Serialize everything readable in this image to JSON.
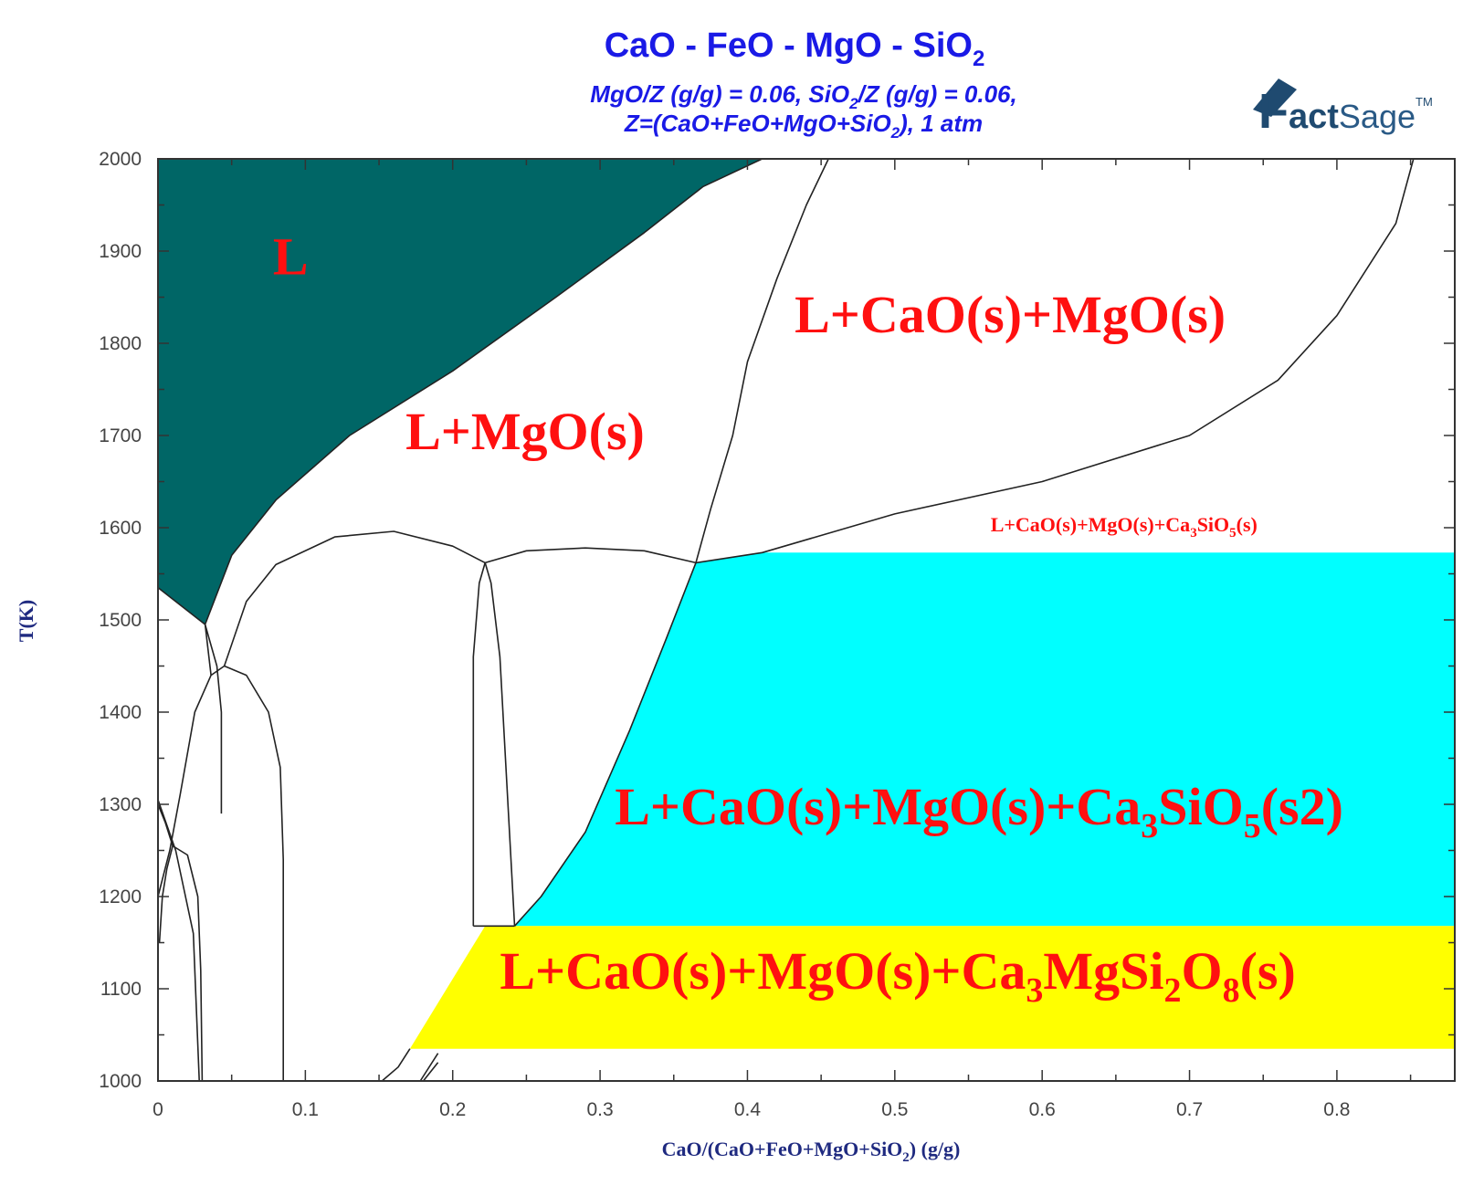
{
  "chart_data": {
    "type": "area",
    "title": "CaO - FeO - MgO - SiO",
    "title_sub": "2",
    "subtitle_line1": {
      "a": "MgO/Z (g/g)  = 0.06,  SiO",
      "sub": "2",
      "b": "/Z (g/g)  = 0.06,"
    },
    "subtitle_line2": {
      "a": "Z=(CaO+FeO+MgO+SiO",
      "sub": "2",
      "b": "), 1 atm"
    },
    "xlabel": {
      "a": "CaO/(CaO+FeO+MgO+SiO",
      "sub": "2",
      "b": ") (g/g)"
    },
    "ylabel": "T(K)",
    "xlim": [
      0,
      0.88
    ],
    "ylim": [
      1000,
      2000
    ],
    "x_ticks": [
      "0",
      "0.1",
      "0.2",
      "0.3",
      "0.4",
      "0.5",
      "0.6",
      "0.7",
      "0.8"
    ],
    "x_tick_values": [
      0,
      0.1,
      0.2,
      0.3,
      0.4,
      0.5,
      0.6,
      0.7,
      0.8
    ],
    "y_ticks": [
      "1000",
      "1100",
      "1200",
      "1300",
      "1400",
      "1500",
      "1600",
      "1700",
      "1800",
      "1900",
      "2000"
    ],
    "y_tick_values": [
      1000,
      1100,
      1200,
      1300,
      1400,
      1500,
      1600,
      1700,
      1800,
      1900,
      2000
    ],
    "logo": {
      "a": "F",
      "b": "act",
      "c": "Sage",
      "tm": "TM"
    },
    "regions": [
      {
        "id": "L",
        "color": "#006666",
        "points": [
          [
            0,
            2000
          ],
          [
            0.41,
            2000
          ],
          [
            0.37,
            1970
          ],
          [
            0.33,
            1920
          ],
          [
            0.27,
            1850
          ],
          [
            0.2,
            1770
          ],
          [
            0.13,
            1700
          ],
          [
            0.08,
            1630
          ],
          [
            0.05,
            1570
          ],
          [
            0.032,
            1495
          ],
          [
            0,
            1535
          ]
        ]
      },
      {
        "id": "L_CaO_MgO_Ca3SiO5_s2",
        "color": "#00ffff",
        "points": [
          [
            0.365,
            1562
          ],
          [
            0.41,
            1573
          ],
          [
            0.88,
            1573
          ],
          [
            0.88,
            1168
          ],
          [
            0.242,
            1168
          ],
          [
            0.26,
            1200
          ],
          [
            0.29,
            1270
          ],
          [
            0.32,
            1380
          ],
          [
            0.345,
            1480
          ]
        ]
      },
      {
        "id": "L_CaO_MgO_Ca3MgSi2O8_s",
        "color": "#ffff00",
        "points": [
          [
            0.222,
            1168
          ],
          [
            0.88,
            1168
          ],
          [
            0.88,
            1035
          ],
          [
            0.171,
            1035
          ]
        ]
      }
    ],
    "boundaries": [
      [
        [
          0.41,
          2000
        ],
        [
          0.37,
          1970
        ],
        [
          0.33,
          1920
        ],
        [
          0.27,
          1850
        ],
        [
          0.2,
          1770
        ],
        [
          0.13,
          1700
        ],
        [
          0.08,
          1630
        ],
        [
          0.05,
          1570
        ],
        [
          0.032,
          1495
        ],
        [
          0,
          1535
        ]
      ],
      [
        [
          0.455,
          2000
        ],
        [
          0.44,
          1950
        ],
        [
          0.42,
          1870
        ],
        [
          0.4,
          1780
        ],
        [
          0.39,
          1700
        ],
        [
          0.375,
          1620
        ],
        [
          0.365,
          1562
        ],
        [
          0.345,
          1480
        ],
        [
          0.32,
          1380
        ],
        [
          0.29,
          1270
        ],
        [
          0.26,
          1200
        ],
        [
          0.242,
          1168
        ]
      ],
      [
        [
          0.852,
          2000
        ],
        [
          0.84,
          1930
        ],
        [
          0.8,
          1830
        ],
        [
          0.76,
          1760
        ],
        [
          0.7,
          1700
        ],
        [
          0.6,
          1650
        ],
        [
          0.5,
          1615
        ],
        [
          0.41,
          1573
        ],
        [
          0.365,
          1562
        ]
      ],
      [
        [
          0.365,
          1562
        ],
        [
          0.33,
          1575
        ],
        [
          0.29,
          1578
        ],
        [
          0.25,
          1575
        ],
        [
          0.222,
          1562
        ]
      ],
      [
        [
          0.222,
          1562
        ],
        [
          0.2,
          1580
        ],
        [
          0.16,
          1596
        ],
        [
          0.12,
          1590
        ],
        [
          0.08,
          1560
        ],
        [
          0.06,
          1520
        ],
        [
          0.045,
          1450
        ]
      ],
      [
        [
          0.222,
          1562
        ],
        [
          0.218,
          1540
        ],
        [
          0.214,
          1460
        ],
        [
          0.214,
          1168
        ]
      ],
      [
        [
          0.222,
          1562
        ],
        [
          0.226,
          1540
        ],
        [
          0.232,
          1460
        ],
        [
          0.242,
          1168
        ]
      ],
      [
        [
          0.214,
          1168
        ],
        [
          0.242,
          1168
        ]
      ],
      [
        [
          0.032,
          1495
        ],
        [
          0.04,
          1450
        ],
        [
          0.043,
          1400
        ],
        [
          0.043,
          1290
        ]
      ],
      [
        [
          0.032,
          1495
        ],
        [
          0.036,
          1440
        ]
      ],
      [
        [
          0.045,
          1450
        ],
        [
          0.036,
          1440
        ],
        [
          0.025,
          1400
        ],
        [
          0.015,
          1310
        ],
        [
          0.008,
          1250
        ],
        [
          0,
          1200
        ]
      ],
      [
        [
          0.045,
          1450
        ],
        [
          0.06,
          1440
        ],
        [
          0.075,
          1400
        ],
        [
          0.083,
          1340
        ],
        [
          0.085,
          1240
        ],
        [
          0.085,
          1000
        ]
      ],
      [
        [
          0,
          1300
        ],
        [
          0.005,
          1280
        ],
        [
          0.01,
          1255
        ],
        [
          0.02,
          1245
        ],
        [
          0.027,
          1200
        ],
        [
          0.029,
          1120
        ],
        [
          0.03,
          1000
        ]
      ],
      [
        [
          0.01,
          1255
        ],
        [
          0.006,
          1230
        ],
        [
          0.003,
          1200
        ],
        [
          0.001,
          1150
        ]
      ],
      [
        [
          0,
          1305
        ],
        [
          0.012,
          1250
        ],
        [
          0.024,
          1160
        ],
        [
          0.028,
          1000
        ]
      ],
      [
        [
          0.152,
          1000
        ],
        [
          0.163,
          1015
        ],
        [
          0.171,
          1035
        ]
      ],
      [
        [
          0.178,
          1000
        ],
        [
          0.19,
          1030
        ]
      ],
      [
        [
          0.18,
          1000
        ],
        [
          0.19,
          1020
        ]
      ]
    ],
    "labels": [
      {
        "id": "label-L",
        "text": "L",
        "x": 0.078,
        "y": 1875,
        "size": "big"
      },
      {
        "id": "label-L-MgO",
        "text": "L+MgO(s)",
        "x": 0.168,
        "y": 1685,
        "size": "big"
      },
      {
        "id": "label-L-CaO-MgO",
        "text": "L+CaO(s)+MgO(s)",
        "x": 0.432,
        "y": 1812,
        "size": "big"
      },
      {
        "id": "label-L-CaO-MgO-Ca3SiO5-s",
        "text": "L+CaO(s)+MgO(s)+Ca",
        "sub1": "3",
        "mid": "SiO",
        "sub2": "5",
        "end": "(s)",
        "x": 0.565,
        "y": 1596,
        "size": "small"
      },
      {
        "id": "label-L-CaO-MgO-Ca3SiO5-s2",
        "text": "L+CaO(s)+MgO(s)+Ca",
        "sub1": "3",
        "mid": "SiO",
        "sub2": "5",
        "end": "(s2)",
        "x": 0.31,
        "y": 1278,
        "size": "big"
      },
      {
        "id": "label-L-CaO-MgO-Ca3MgSi2O8",
        "text": "L+CaO(s)+MgO(s)+Ca",
        "sub1": "3",
        "mid": "MgSi",
        "sub2": "2",
        "mid2": "O",
        "sub3": "8",
        "end": "(s)",
        "x": 0.232,
        "y": 1100,
        "size": "big"
      }
    ]
  }
}
